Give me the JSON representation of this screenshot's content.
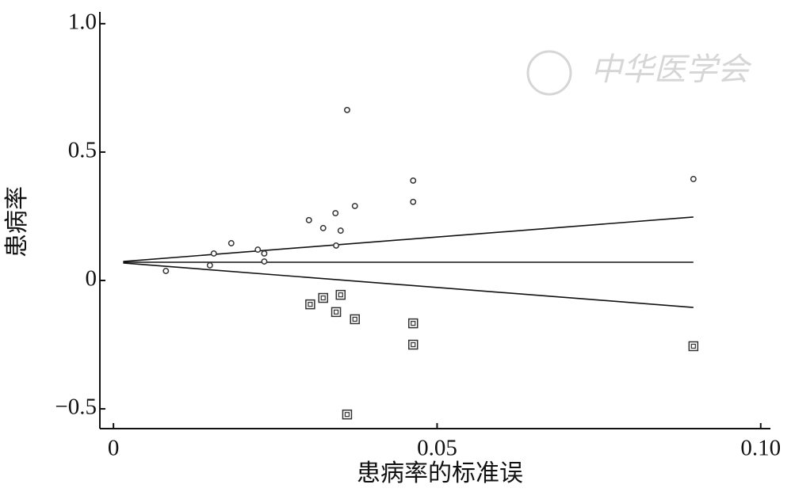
{
  "chart_data": {
    "type": "scatter",
    "xlabel": "患病率的标准误",
    "ylabel": "患病率",
    "watermark": "中华医学会",
    "xlim": [
      -0.0021,
      0.1015
    ],
    "ylim": [
      -0.577,
      1.046
    ],
    "xticks": [
      0,
      0.05,
      {
        "value": 0.1,
        "label": "0.10"
      }
    ],
    "yticks": [
      {
        "value": -0.5,
        "label": "−0.5"
      },
      0,
      0.5,
      {
        "value": 1,
        "label": "1.0"
      }
    ],
    "series": [
      {
        "marker": "circle",
        "color": "#333333",
        "x": [
          0.0081,
          0.0149,
          0.0155,
          0.0182,
          0.0223,
          0.0233,
          0.0233,
          0.0302,
          0.0324,
          0.0343,
          0.0351,
          0.0344,
          0.0361,
          0.0373,
          0.0463,
          0.0463,
          0.0896
        ],
        "y": [
          0.037,
          0.059,
          0.105,
          0.145,
          0.12,
          0.105,
          0.074,
          0.235,
          0.204,
          0.262,
          0.194,
          0.136,
          0.664,
          0.29,
          0.389,
          0.306,
          0.395
        ]
      },
      {
        "marker": "square",
        "color": "#333333",
        "x": [
          0.0304,
          0.0324,
          0.0344,
          0.0351,
          0.0373,
          0.0463,
          0.0463,
          0.0896,
          0.0361
        ],
        "y": [
          -0.093,
          -0.068,
          -0.123,
          -0.056,
          -0.151,
          -0.167,
          -0.25,
          -0.256,
          -0.522
        ]
      }
    ],
    "lines": [
      {
        "color": "#111111",
        "x": [
          0.0015,
          0.0896
        ],
        "y": [
          0.071,
          0.071
        ]
      },
      {
        "color": "#111111",
        "x": [
          0.0015,
          0.0896
        ],
        "y": [
          0.074,
          0.247
        ]
      },
      {
        "color": "#111111",
        "x": [
          0.0015,
          0.0896
        ],
        "y": [
          0.068,
          -0.105
        ]
      }
    ]
  }
}
